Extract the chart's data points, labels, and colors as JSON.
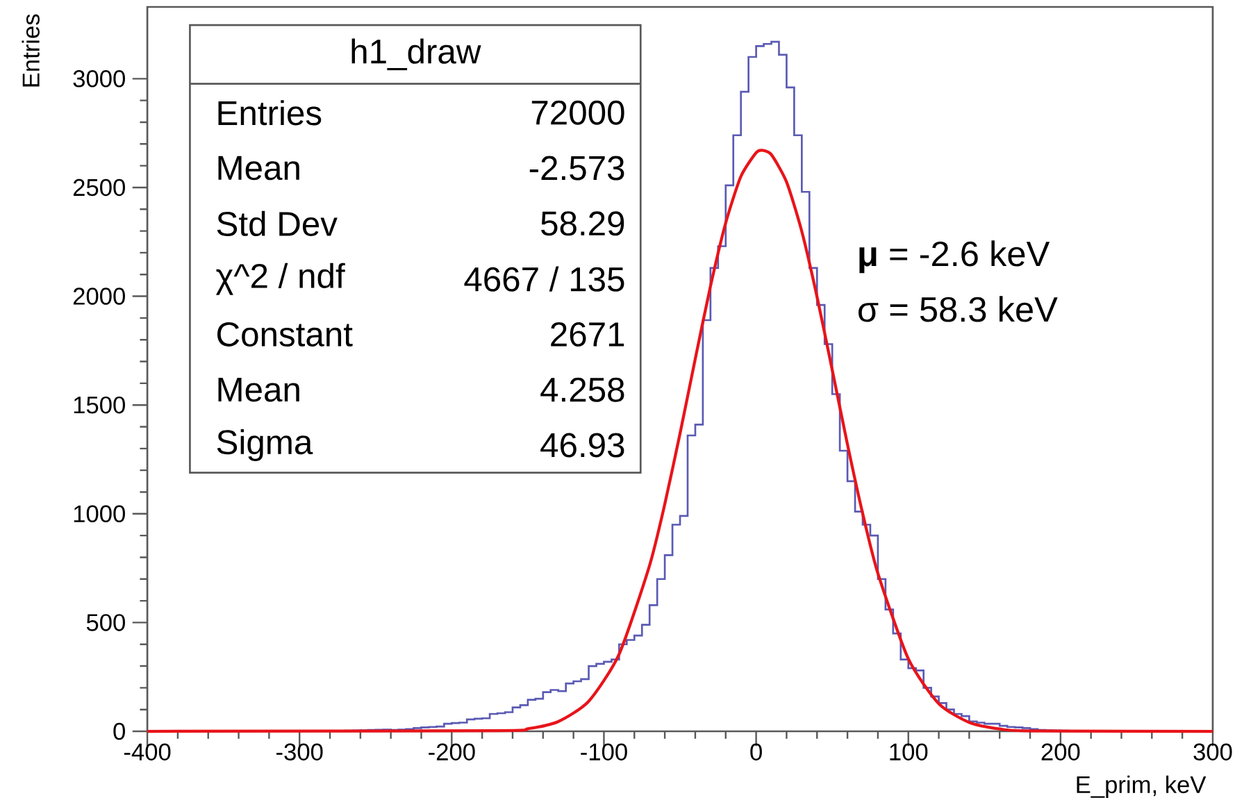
{
  "chart_data": {
    "type": "histogram",
    "xlabel": "E_prim, keV",
    "ylabel": "Entries",
    "bins": [
      -270,
      -265,
      -260,
      -255,
      -250,
      -245,
      -240,
      -235,
      -230,
      -225,
      -220,
      -215,
      -210,
      -205,
      -200,
      -195,
      -190,
      -185,
      -180,
      -175,
      -170,
      -165,
      -160,
      -155,
      -150,
      -145,
      -140,
      -135,
      -130,
      -125,
      -120,
      -115,
      -110,
      -105,
      -100,
      -95,
      -90,
      -85,
      -80,
      -75,
      -70,
      -65,
      -60,
      -55,
      -50,
      -45,
      -40,
      -35,
      -30,
      -25,
      -20,
      -15,
      -10,
      -5,
      0,
      5,
      10,
      15,
      20,
      25,
      30,
      35,
      40,
      45,
      50,
      55,
      60,
      65,
      70,
      75,
      80,
      85,
      90,
      95,
      100,
      105,
      110,
      115,
      120,
      125,
      130,
      135,
      140,
      145,
      150,
      155,
      160,
      165,
      170,
      175,
      180,
      185,
      190,
      195,
      200,
      205,
      210
    ],
    "values": [
      3,
      4,
      5,
      6,
      7,
      8,
      6,
      8,
      10,
      15,
      18,
      20,
      22,
      35,
      38,
      40,
      55,
      58,
      60,
      80,
      83,
      88,
      110,
      120,
      145,
      150,
      180,
      190,
      185,
      220,
      230,
      240,
      300,
      310,
      320,
      330,
      400,
      420,
      440,
      490,
      580,
      700,
      810,
      950,
      990,
      1360,
      1410,
      1890,
      2130,
      2230,
      2510,
      2740,
      2940,
      3100,
      3150,
      3160,
      3170,
      3110,
      2960,
      2740,
      2480,
      2130,
      1960,
      1780,
      1550,
      1290,
      1150,
      1010,
      950,
      900,
      700,
      560,
      450,
      330,
      290,
      280,
      200,
      160,
      130,
      100,
      80,
      70,
      45,
      40,
      35,
      35,
      25,
      20,
      18,
      15,
      10,
      6,
      5,
      4,
      3,
      2
    ],
    "color": "#5a5ab4",
    "series": [
      {
        "type": "line",
        "color": "#e8141a",
        "x": [
          -400,
          -170,
          -150,
          -130,
          -110,
          -90,
          -70,
          -60,
          -50,
          -40,
          -30,
          -20,
          -10,
          0,
          4,
          10,
          20,
          30,
          40,
          50,
          60,
          70,
          80,
          100,
          120,
          140,
          160,
          180,
          300
        ],
        "values": [
          0,
          3,
          12,
          45,
          138,
          355,
          763,
          1045,
          1369,
          1712,
          2046,
          2337,
          2551,
          2660,
          2671,
          2651,
          2525,
          2298,
          1998,
          1661,
          1319,
          1001,
          726,
          333,
          127,
          41,
          11,
          2,
          0
        ]
      }
    ],
    "xlim": [
      -400,
      300
    ],
    "ylim": [
      0,
      3330
    ],
    "xticks": [
      -400,
      -300,
      -200,
      -100,
      0,
      100,
      200,
      300
    ],
    "yticks": [
      0,
      500,
      1000,
      1500,
      2000,
      2500,
      3000
    ],
    "grid": false,
    "annotations": [
      "h1_draw",
      "Entries",
      "72000",
      "Mean",
      "-2.573",
      "Std Dev",
      "58.29",
      "χ^2 / ndf",
      "4667 / 135",
      "Constant",
      "2671",
      "Mean",
      "4.258",
      "Sigma",
      "46.93",
      "**μ** = -2.6 keV",
      "σ = 58.3 keV"
    ]
  }
}
